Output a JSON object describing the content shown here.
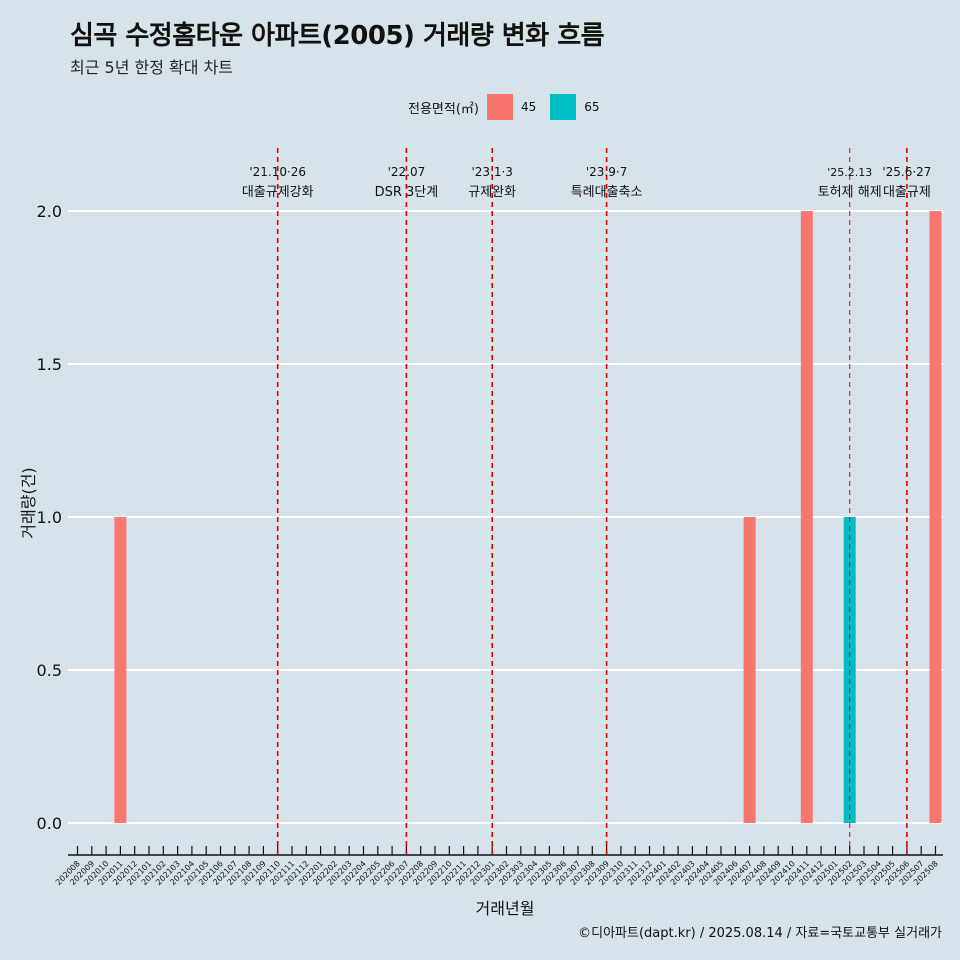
{
  "chart_data": {
    "type": "bar",
    "title": "심곡 수정홈타운 아파트(2005) 거래량 변화 흐름",
    "subtitle": "최근 5년 한정 확대 차트",
    "xlabel": "거래년월",
    "ylabel": "거래량(건)",
    "ylim": [
      0,
      2
    ],
    "yticks": [
      "0.0",
      "0.5",
      "1.0",
      "1.5",
      "2.0"
    ],
    "ytick_values": [
      0,
      0.5,
      1.0,
      1.5,
      2.0
    ],
    "grid": true,
    "legend": {
      "title": "전용면적(㎡)",
      "position": "top"
    },
    "categories": [
      "202008",
      "202009",
      "202010",
      "202011",
      "202012",
      "202101",
      "202102",
      "202103",
      "202104",
      "202105",
      "202106",
      "202107",
      "202108",
      "202109",
      "202110",
      "202111",
      "202112",
      "202201",
      "202202",
      "202203",
      "202204",
      "202205",
      "202206",
      "202207",
      "202208",
      "202209",
      "202210",
      "202211",
      "202212",
      "202301",
      "202302",
      "202303",
      "202304",
      "202305",
      "202306",
      "202307",
      "202308",
      "202309",
      "202310",
      "202311",
      "202312",
      "202401",
      "202402",
      "202403",
      "202404",
      "202405",
      "202406",
      "202407",
      "202408",
      "202409",
      "202410",
      "202411",
      "202412",
      "202501",
      "202502",
      "202503",
      "202504",
      "202505",
      "202506",
      "202507",
      "202508"
    ],
    "series": [
      {
        "name": "45",
        "color": "#f8766d",
        "points": [
          {
            "x": "202011",
            "y": 1
          },
          {
            "x": "202407",
            "y": 1
          },
          {
            "x": "202411",
            "y": 2
          },
          {
            "x": "202508",
            "y": 2
          }
        ]
      },
      {
        "name": "65",
        "color": "#00bfc4",
        "points": [
          {
            "x": "202502",
            "y": 1
          }
        ]
      }
    ],
    "annotations": [
      {
        "x": "202110",
        "date": "'21.10·26",
        "label": "대출규제강화"
      },
      {
        "x": "202207",
        "date": "'22.07",
        "label": "DSR 3단계"
      },
      {
        "x": "202301",
        "date": "'23.1·3",
        "label": "규제완화"
      },
      {
        "x": "202309",
        "date": "'23.9·7",
        "label": "특례대출축소"
      },
      {
        "x": "202502",
        "date": "'25.2.13",
        "label": "토허제 해제"
      },
      {
        "x": "202506",
        "date": "'25.6·27",
        "label": "대출규제"
      }
    ],
    "annotation_color": "#e00000"
  },
  "caption": "©디아파트(dapt.kr) / 2025.08.14 / 자료=국토교통부 실거래가"
}
